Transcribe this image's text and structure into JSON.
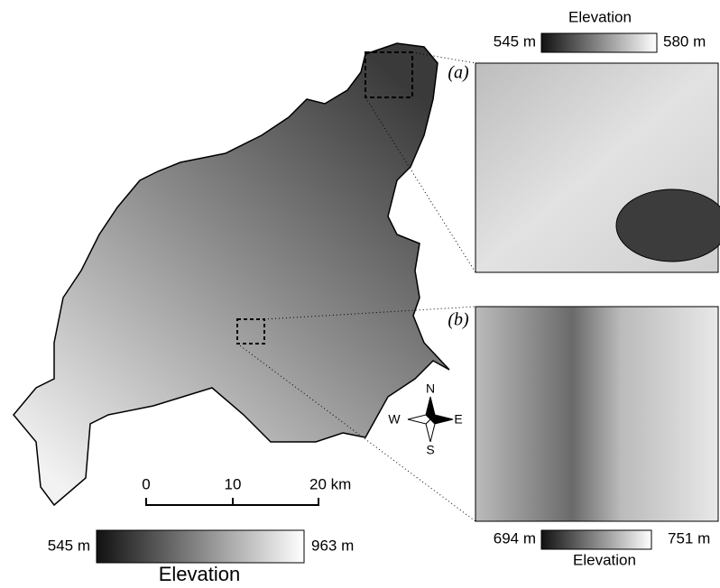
{
  "main_map": {
    "legend": {
      "title": "Elevation",
      "min_label": "545 m",
      "max_label": "963 m"
    },
    "scale_bar": {
      "labels": [
        "0",
        "10",
        "20 km"
      ]
    },
    "compass": {
      "north": "N",
      "south": "S",
      "east": "E",
      "west": "W"
    }
  },
  "insets": [
    {
      "label": "(a)",
      "legend": {
        "title": "Elevation",
        "min_label": "545 m",
        "max_label": "580 m"
      }
    },
    {
      "label": "(b)",
      "legend": {
        "title": "Elevation",
        "min_label": "694 m",
        "max_label": "751 m"
      }
    }
  ]
}
